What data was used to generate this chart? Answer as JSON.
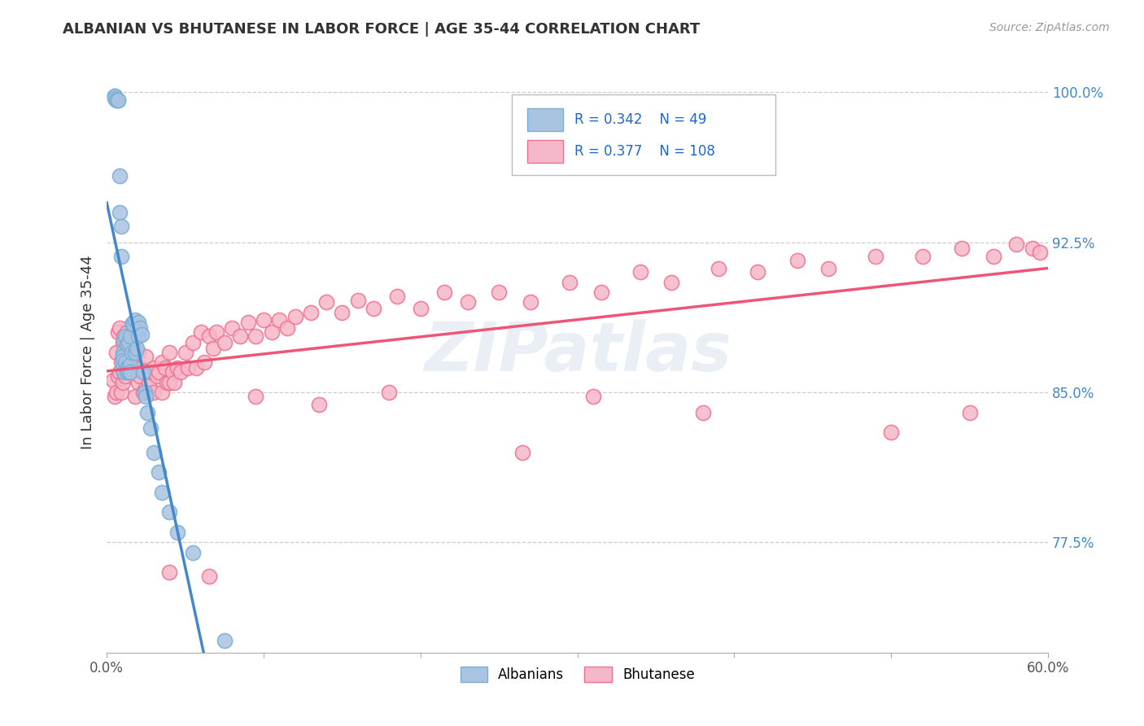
{
  "title": "ALBANIAN VS BHUTANESE IN LABOR FORCE | AGE 35-44 CORRELATION CHART",
  "source": "Source: ZipAtlas.com",
  "ylabel": "In Labor Force | Age 35-44",
  "xlim": [
    0.0,
    0.6
  ],
  "ylim": [
    0.72,
    1.02
  ],
  "ytick_positions": [
    0.775,
    0.85,
    0.925,
    1.0
  ],
  "ytick_labels": [
    "77.5%",
    "85.0%",
    "92.5%",
    "100.0%"
  ],
  "albanian_color": "#a8c4e0",
  "albanian_edge": "#7aaed6",
  "bhutanese_color": "#f5b8c8",
  "bhutanese_edge": "#f07090",
  "trend_albanian_color": "#4488cc",
  "trend_bhutanese_color": "#ee5577",
  "legend_R_albanian": "R = 0.342",
  "legend_N_albanian": "N = 49",
  "legend_R_bhutanese": "R = 0.377",
  "legend_N_bhutanese": "N = 108",
  "watermark": "ZIPatlas",
  "albanian_x": [
    0.005,
    0.005,
    0.005,
    0.006,
    0.007,
    0.007,
    0.008,
    0.008,
    0.009,
    0.009,
    0.01,
    0.01,
    0.01,
    0.01,
    0.011,
    0.011,
    0.012,
    0.012,
    0.013,
    0.013,
    0.013,
    0.014,
    0.014,
    0.014,
    0.015,
    0.015,
    0.015,
    0.016,
    0.016,
    0.017,
    0.018,
    0.018,
    0.019,
    0.02,
    0.02,
    0.021,
    0.022,
    0.023,
    0.024,
    0.025,
    0.026,
    0.028,
    0.03,
    0.033,
    0.035,
    0.04,
    0.045,
    0.055,
    0.075
  ],
  "albanian_y": [
    0.998,
    0.998,
    0.997,
    0.996,
    0.996,
    0.996,
    0.958,
    0.94,
    0.933,
    0.918,
    0.87,
    0.868,
    0.866,
    0.862,
    0.876,
    0.86,
    0.878,
    0.865,
    0.874,
    0.862,
    0.86,
    0.875,
    0.862,
    0.86,
    0.878,
    0.864,
    0.86,
    0.884,
    0.87,
    0.884,
    0.886,
    0.87,
    0.872,
    0.885,
    0.878,
    0.882,
    0.879,
    0.86,
    0.85,
    0.848,
    0.84,
    0.832,
    0.82,
    0.81,
    0.8,
    0.79,
    0.78,
    0.77,
    0.726
  ],
  "bhutanese_x": [
    0.004,
    0.005,
    0.006,
    0.006,
    0.007,
    0.007,
    0.008,
    0.008,
    0.009,
    0.009,
    0.01,
    0.01,
    0.01,
    0.011,
    0.011,
    0.012,
    0.012,
    0.013,
    0.013,
    0.014,
    0.014,
    0.015,
    0.015,
    0.016,
    0.016,
    0.017,
    0.018,
    0.018,
    0.019,
    0.02,
    0.02,
    0.021,
    0.022,
    0.023,
    0.024,
    0.025,
    0.025,
    0.027,
    0.028,
    0.03,
    0.03,
    0.032,
    0.033,
    0.035,
    0.035,
    0.037,
    0.038,
    0.04,
    0.04,
    0.042,
    0.043,
    0.045,
    0.047,
    0.05,
    0.052,
    0.055,
    0.057,
    0.06,
    0.062,
    0.065,
    0.068,
    0.07,
    0.075,
    0.08,
    0.085,
    0.09,
    0.095,
    0.1,
    0.105,
    0.11,
    0.115,
    0.12,
    0.13,
    0.14,
    0.15,
    0.16,
    0.17,
    0.185,
    0.2,
    0.215,
    0.23,
    0.25,
    0.27,
    0.295,
    0.315,
    0.34,
    0.36,
    0.39,
    0.415,
    0.44,
    0.46,
    0.49,
    0.52,
    0.545,
    0.565,
    0.58,
    0.59,
    0.595,
    0.55,
    0.5,
    0.38,
    0.31,
    0.265,
    0.18,
    0.135,
    0.095,
    0.065,
    0.04
  ],
  "bhutanese_y": [
    0.856,
    0.848,
    0.87,
    0.85,
    0.88,
    0.858,
    0.882,
    0.86,
    0.865,
    0.85,
    0.875,
    0.868,
    0.855,
    0.878,
    0.86,
    0.875,
    0.858,
    0.88,
    0.862,
    0.875,
    0.86,
    0.878,
    0.862,
    0.876,
    0.86,
    0.872,
    0.862,
    0.848,
    0.86,
    0.87,
    0.855,
    0.858,
    0.862,
    0.85,
    0.86,
    0.868,
    0.852,
    0.855,
    0.86,
    0.862,
    0.85,
    0.858,
    0.86,
    0.865,
    0.85,
    0.862,
    0.855,
    0.87,
    0.855,
    0.86,
    0.855,
    0.862,
    0.86,
    0.87,
    0.862,
    0.875,
    0.862,
    0.88,
    0.865,
    0.878,
    0.872,
    0.88,
    0.875,
    0.882,
    0.878,
    0.885,
    0.878,
    0.886,
    0.88,
    0.886,
    0.882,
    0.888,
    0.89,
    0.895,
    0.89,
    0.896,
    0.892,
    0.898,
    0.892,
    0.9,
    0.895,
    0.9,
    0.895,
    0.905,
    0.9,
    0.91,
    0.905,
    0.912,
    0.91,
    0.916,
    0.912,
    0.918,
    0.918,
    0.922,
    0.918,
    0.924,
    0.922,
    0.92,
    0.84,
    0.83,
    0.84,
    0.848,
    0.82,
    0.85,
    0.844,
    0.848,
    0.758,
    0.76
  ]
}
